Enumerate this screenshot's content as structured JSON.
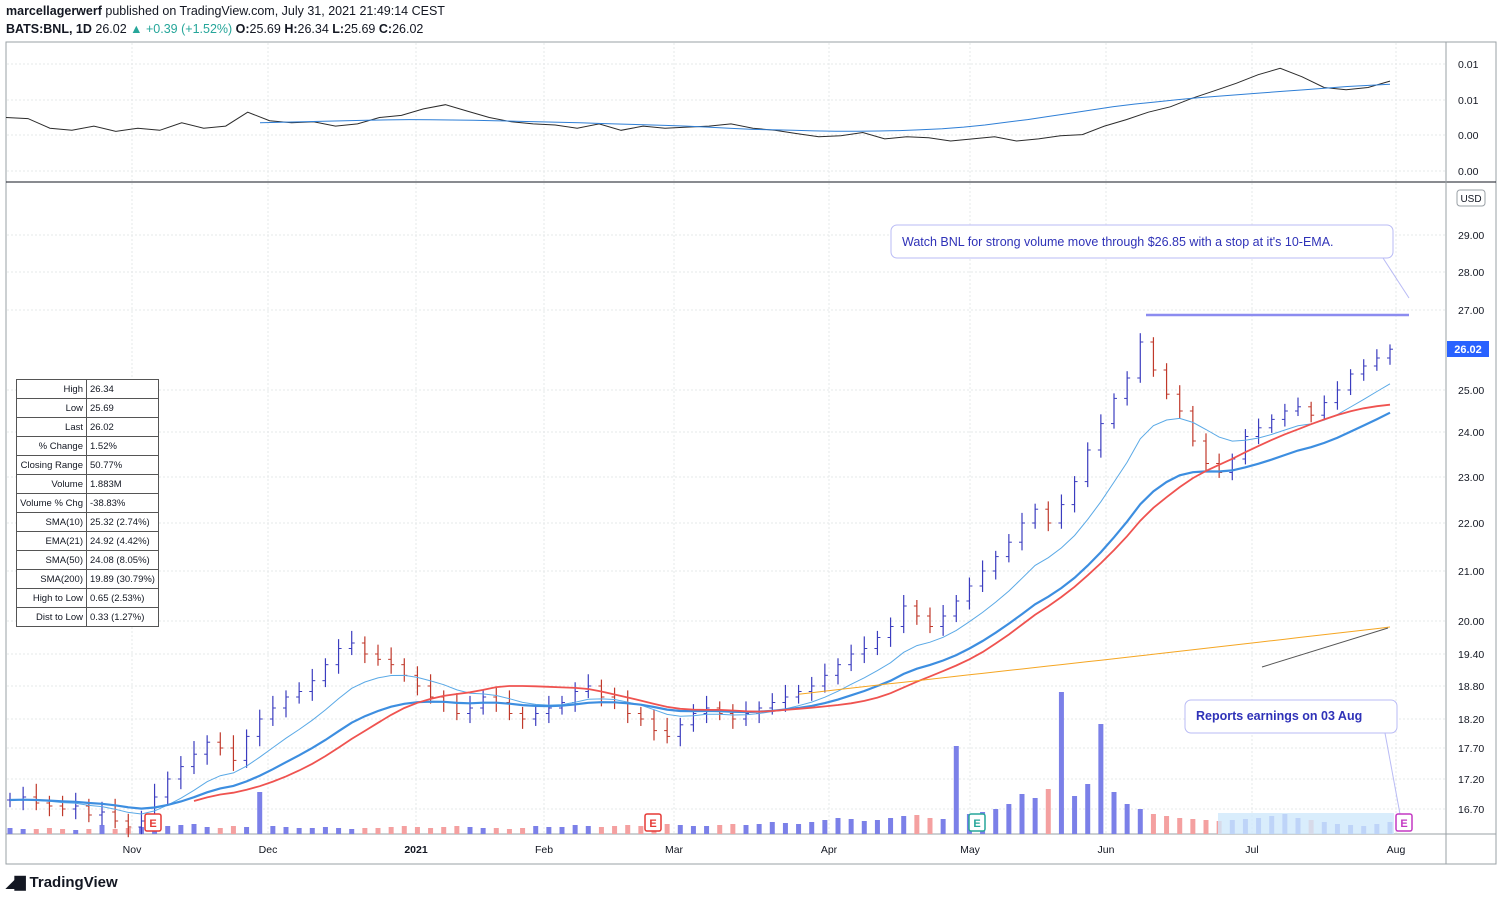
{
  "header": {
    "author": "marcellagerwerf",
    "published": "published on TradingView.com, July 31, 2021 21:49:14 CEST",
    "symbol": "BATS:BNL, 1D",
    "last": "26.02",
    "arrow": "▲",
    "change": "+0.39 (+1.52%)",
    "o_label": "O:",
    "o": "25.69",
    "h_label": "H:",
    "h": "26.34",
    "l_label": "L:",
    "l": "25.69",
    "c_label": "C:",
    "c": "26.02"
  },
  "brand": "TradingView",
  "stats_table": [
    {
      "label": "High",
      "value": "26.34"
    },
    {
      "label": "Low",
      "value": "25.69"
    },
    {
      "label": "Last",
      "value": "26.02"
    },
    {
      "label": "% Change",
      "value": "1.52%"
    },
    {
      "label": "Closing Range",
      "value": "50.77%"
    },
    {
      "label": "Volume",
      "value": "1.883M"
    },
    {
      "label": "Volume % Chg",
      "value": "-38.83%"
    },
    {
      "label": "SMA(10)",
      "value": "25.32 (2.74%)"
    },
    {
      "label": "EMA(21)",
      "value": "24.92 (4.42%)"
    },
    {
      "label": "SMA(50)",
      "value": "24.08 (8.05%)"
    },
    {
      "label": "SMA(200)",
      "value": "19.89 (30.79%)"
    },
    {
      "label": "High to Low",
      "value": "0.65 (2.53%)"
    },
    {
      "label": "Dist to Low",
      "value": "0.33 (1.27%)"
    }
  ],
  "annotations": {
    "watch": "Watch BNL for strong volume move through $26.85 with a stop at it's 10-EMA.",
    "earnings": "Reports earnings on 03 Aug",
    "earnings_marker": "E"
  },
  "colors": {
    "up": "#3b3dbf",
    "down": "#c0392b",
    "ema10": "#5aa9e6",
    "ema21": "#3d8ee0",
    "sma50": "#ef5350",
    "sma200": "#f5a623",
    "rs": "#2b2b2b",
    "rs_ma": "#2f7fd6",
    "vol_up": "#7b80e8",
    "vol_down": "#f4a0a0",
    "resistance": "#8c8cf0",
    "last_badge": "#2962ff"
  },
  "chart_data": [
    {
      "type": "line",
      "title": "",
      "y_ticks": [
        "0.01",
        "0.01",
        "0.00",
        "0.00"
      ],
      "series": [
        {
          "values": [
            0.5,
            0.49,
            0.4,
            0.38,
            0.42,
            0.37,
            0.4,
            0.38,
            0.45,
            0.4,
            0.42,
            0.55,
            0.47,
            0.45,
            0.46,
            0.42,
            0.44,
            0.5,
            0.52,
            0.58,
            0.62,
            0.56,
            0.5,
            0.46,
            0.44,
            0.43,
            0.4,
            0.44,
            0.38,
            0.42,
            0.4,
            0.41,
            0.42,
            0.44,
            0.4,
            0.38,
            0.35,
            0.32,
            0.33,
            0.36,
            0.3,
            0.32,
            0.31,
            0.28,
            0.3,
            0.32,
            0.28,
            0.3,
            0.33,
            0.34,
            0.42,
            0.48,
            0.55,
            0.6,
            0.68,
            0.75,
            0.82,
            0.9,
            0.96,
            0.88,
            0.78,
            0.76,
            0.78,
            0.84
          ]
        },
        {
          "values": [
            0.45,
            0.455,
            0.46,
            0.465,
            0.47,
            0.475,
            0.478,
            0.48,
            0.479,
            0.477,
            0.474,
            0.47,
            0.465,
            0.46,
            0.455,
            0.45,
            0.444,
            0.438,
            0.432,
            0.426,
            0.42,
            0.41,
            0.4,
            0.39,
            0.385,
            0.38,
            0.375,
            0.372,
            0.372,
            0.374,
            0.378,
            0.385,
            0.395,
            0.41,
            0.43,
            0.455,
            0.48,
            0.51,
            0.54,
            0.57,
            0.6,
            0.625,
            0.645,
            0.665,
            0.685,
            0.7,
            0.715,
            0.73,
            0.745,
            0.76,
            0.775,
            0.79,
            0.8,
            0.81
          ]
        }
      ]
    },
    {
      "type": "candlestick",
      "title": "",
      "y_unit": "USD",
      "y_ticks": [
        "29.00",
        "28.00",
        "27.00",
        "25.00",
        "24.00",
        "23.00",
        "22.00",
        "21.00",
        "20.00",
        "19.40",
        "18.80",
        "18.20",
        "17.70",
        "17.20",
        "16.70"
      ],
      "x_ticks": [
        "Nov",
        "Dec",
        "2021",
        "Feb",
        "Mar",
        "Apr",
        "May",
        "Jun",
        "Jul",
        "Aug"
      ],
      "last_price": "26.02",
      "resistance": 26.85,
      "closes": [
        16.85,
        16.9,
        16.8,
        16.75,
        16.7,
        16.75,
        16.6,
        16.65,
        16.5,
        16.4,
        16.5,
        16.9,
        17.2,
        17.4,
        17.6,
        17.8,
        17.7,
        17.5,
        17.9,
        18.2,
        18.4,
        18.6,
        18.7,
        18.9,
        19.2,
        19.5,
        19.6,
        19.4,
        19.3,
        19.2,
        19.0,
        18.8,
        18.6,
        18.5,
        18.3,
        18.4,
        18.6,
        18.5,
        18.3,
        18.2,
        18.3,
        18.4,
        18.5,
        18.7,
        18.8,
        18.6,
        18.5,
        18.3,
        18.2,
        18.0,
        17.9,
        18.1,
        18.3,
        18.4,
        18.3,
        18.2,
        18.3,
        18.4,
        18.5,
        18.6,
        18.7,
        18.8,
        19.0,
        19.2,
        19.4,
        19.5,
        19.7,
        19.9,
        20.3,
        20.1,
        19.9,
        20.1,
        20.4,
        20.7,
        21.0,
        21.3,
        21.6,
        22.0,
        22.3,
        22.0,
        22.4,
        22.9,
        23.6,
        24.2,
        24.8,
        25.3,
        26.2,
        25.5,
        24.9,
        24.5,
        23.8,
        23.3,
        23.1,
        23.4,
        23.9,
        24.1,
        24.3,
        24.5,
        24.6,
        24.4,
        24.7,
        25.0,
        25.4,
        25.6,
        25.8,
        26.02
      ],
      "ema10_end": 25.32,
      "ema21_end": 24.92,
      "sma50_end": 24.08,
      "sma200_end": 19.89,
      "earnings_markers": [
        "Nov",
        "Feb",
        "May",
        "Aug"
      ]
    }
  ]
}
